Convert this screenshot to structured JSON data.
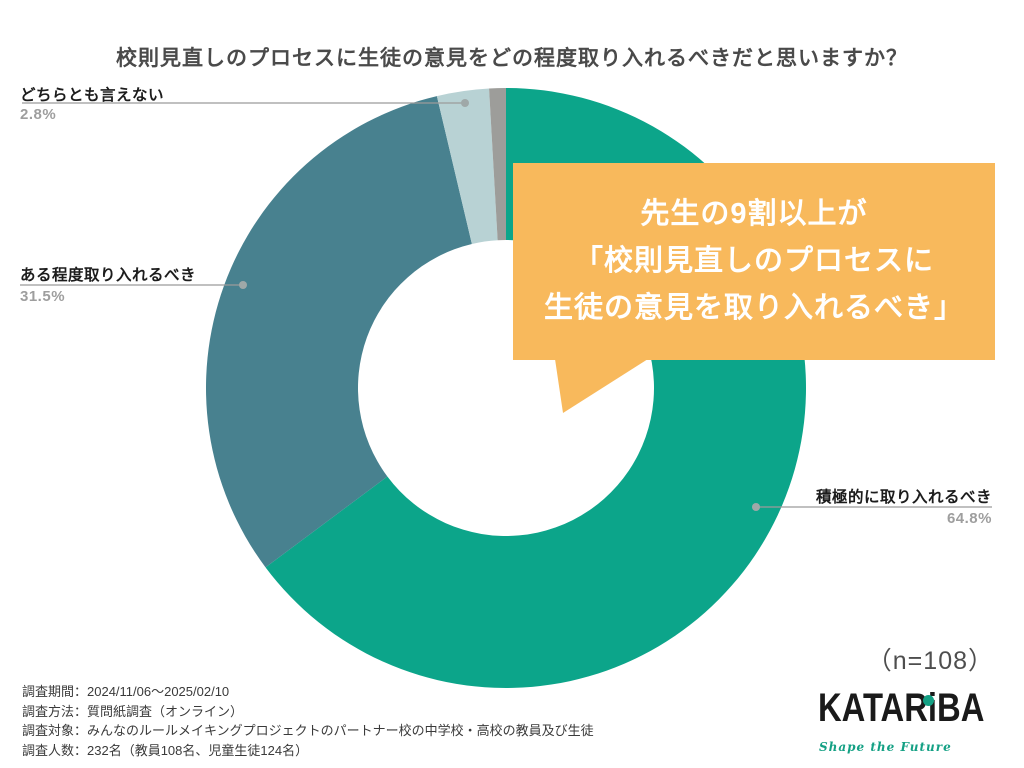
{
  "title": "校則見直しのプロセスに生徒の意見をどの程度取り入れるべきだと思いますか？",
  "chart_data": {
    "type": "pie",
    "subtype": "donut",
    "title": "校則見直しのプロセスに生徒の意見をどの程度取り入れるべきだと思いますか？",
    "start_angle_deg": 0,
    "direction": "clockwise",
    "segments": [
      {
        "label": "積極的に取り入れるべき",
        "value": 64.8,
        "color": "#0CA58A"
      },
      {
        "label": "ある程度取り入れるべき",
        "value": 31.5,
        "color": "#48818F"
      },
      {
        "label": "どちらとも言えない",
        "value": 2.8,
        "color": "#B8D2D4"
      },
      {
        "label": "",
        "value": 0.9,
        "color": "#9D9D9A"
      }
    ],
    "sample_size": "（n=108）",
    "legend_position": "callout-labels"
  },
  "labels": {
    "neutral": {
      "text": "どちらとも言えない",
      "pct": "2.8%"
    },
    "somewhat": {
      "text": "ある程度取り入れるべき",
      "pct": "31.5%"
    },
    "active": {
      "text": "積極的に取り入れるべき",
      "pct": "64.8%"
    }
  },
  "callout": {
    "lines": [
      "先生の9割以上が",
      "「校則見直しのプロセスに",
      "生徒の意見を取り入れるべき」"
    ],
    "bg_color": "#F8B95C",
    "text_color": "#FFFFFF"
  },
  "n_note": "（n=108）",
  "footer": {
    "lines": [
      "調査期間：2024/11/06～2025/02/10",
      "調査方法：質問紙調査（オンライン）",
      "調査対象：みんなのルールメイキングプロジェクトのパートナー校の中学校・高校の教員及び生徒",
      "調査人数：232名（教員108名、児童生徒124名）"
    ]
  },
  "logo": {
    "text": "KATARiBA",
    "tagline": "Shape the Future",
    "accent_color": "#14A084"
  },
  "colors": {
    "leader_line": "#9B9B9B",
    "leader_dot": "#9FA8A8",
    "title_text": "#4A4A4A"
  }
}
